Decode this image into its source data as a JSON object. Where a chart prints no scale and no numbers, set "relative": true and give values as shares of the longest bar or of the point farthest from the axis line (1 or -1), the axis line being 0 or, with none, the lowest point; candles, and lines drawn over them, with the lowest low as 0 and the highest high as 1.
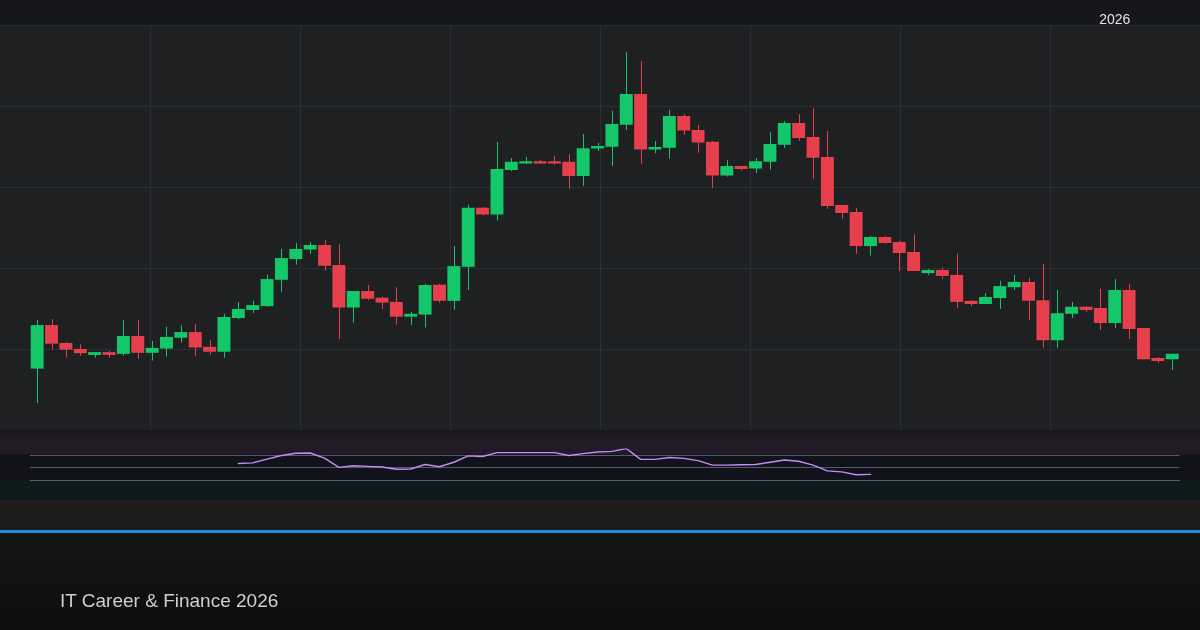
{
  "chart_data": [
    {
      "type": "candlestick",
      "relative": true,
      "grid": true,
      "categories": [
        null,
        null,
        null,
        null,
        null,
        null,
        null,
        null,
        null,
        null,
        null,
        null,
        null,
        null,
        null,
        null,
        null,
        null,
        null,
        null,
        null,
        null,
        null,
        null,
        null,
        null,
        null,
        null,
        null,
        null,
        null,
        null,
        null,
        null,
        null,
        null,
        null,
        null,
        null,
        null,
        null,
        null,
        null,
        null,
        null,
        null,
        null,
        null,
        null,
        null,
        null,
        null,
        null,
        null,
        null,
        null,
        null,
        null,
        null,
        null,
        null,
        null,
        null,
        null,
        null,
        null,
        null,
        null,
        null,
        null,
        null,
        null,
        null,
        null,
        null,
        "2026",
        null,
        null,
        null,
        null
      ],
      "ohlc": [
        [
          0.098,
          0.236,
          0,
          0.222
        ],
        [
          0.222,
          0.239,
          0.152,
          0.169
        ],
        [
          0.171,
          0.174,
          0.129,
          0.152
        ],
        [
          0.154,
          0.167,
          0.135,
          0.142
        ],
        [
          0.137,
          0.145,
          0.129,
          0.145
        ],
        [
          0.145,
          0.149,
          0.129,
          0.137
        ],
        [
          0.14,
          0.236,
          0.135,
          0.191
        ],
        [
          0.191,
          0.236,
          0.126,
          0.143
        ],
        [
          0.143,
          0.177,
          0.121,
          0.157
        ],
        [
          0.155,
          0.217,
          0.132,
          0.188
        ],
        [
          0.186,
          0.221,
          0.172,
          0.202
        ],
        [
          0.202,
          0.225,
          0.134,
          0.158
        ],
        [
          0.16,
          0.179,
          0.138,
          0.146
        ],
        [
          0.146,
          0.254,
          0.129,
          0.245
        ],
        [
          0.242,
          0.288,
          0.239,
          0.268
        ],
        [
          0.265,
          0.291,
          0.256,
          0.279
        ],
        [
          0.276,
          0.365,
          0.274,
          0.353
        ],
        [
          0.351,
          0.439,
          0.317,
          0.413
        ],
        [
          0.41,
          0.456,
          0.394,
          0.439
        ],
        [
          0.437,
          0.459,
          0.425,
          0.45
        ],
        [
          0.45,
          0.464,
          0.377,
          0.391
        ],
        [
          0.393,
          0.452,
          0.182,
          0.272
        ],
        [
          0.272,
          0.319,
          0.229,
          0.319
        ],
        [
          0.319,
          0.336,
          0.293,
          0.297
        ],
        [
          0.3,
          0.303,
          0.268,
          0.286
        ],
        [
          0.288,
          0.33,
          0.223,
          0.246
        ],
        [
          0.246,
          0.259,
          0.222,
          0.254
        ],
        [
          0.252,
          0.339,
          0.215,
          0.336
        ],
        [
          0.337,
          0.339,
          0.286,
          0.291
        ],
        [
          0.291,
          0.447,
          0.266,
          0.39
        ],
        [
          0.388,
          0.565,
          0.322,
          0.556
        ],
        [
          0.556,
          0.558,
          0.534,
          0.537
        ],
        [
          0.537,
          0.744,
          0.52,
          0.667
        ],
        [
          0.664,
          0.698,
          0.661,
          0.687
        ],
        [
          0.682,
          0.701,
          0.681,
          0.689
        ],
        [
          0.689,
          0.692,
          0.681,
          0.682
        ],
        [
          0.689,
          0.704,
          0.679,
          0.682
        ],
        [
          0.687,
          0.709,
          0.611,
          0.647
        ],
        [
          0.647,
          0.766,
          0.619,
          0.726
        ],
        [
          0.725,
          0.741,
          0.718,
          0.732
        ],
        [
          0.73,
          0.832,
          0.676,
          0.795
        ],
        [
          0.793,
          1,
          0.778,
          0.88
        ],
        [
          0.88,
          0.974,
          0.682,
          0.722
        ],
        [
          0.722,
          0.746,
          0.712,
          0.729
        ],
        [
          0.727,
          0.835,
          0.696,
          0.818
        ],
        [
          0.818,
          0.823,
          0.764,
          0.776
        ],
        [
          0.778,
          0.792,
          0.713,
          0.742
        ],
        [
          0.744,
          0.746,
          0.613,
          0.648
        ],
        [
          0.648,
          0.692,
          0.645,
          0.675
        ],
        [
          0.675,
          0.675,
          0.662,
          0.667
        ],
        [
          0.668,
          0.698,
          0.656,
          0.689
        ],
        [
          0.687,
          0.772,
          0.665,
          0.738
        ],
        [
          0.736,
          0.803,
          0.727,
          0.798
        ],
        [
          0.798,
          0.823,
          0.747,
          0.755
        ],
        [
          0.758,
          0.84,
          0.639,
          0.699
        ],
        [
          0.701,
          0.775,
          0.553,
          0.561
        ],
        [
          0.564,
          0.564,
          0.525,
          0.541
        ],
        [
          0.544,
          0.556,
          0.425,
          0.447
        ],
        [
          0.447,
          0.476,
          0.42,
          0.473
        ],
        [
          0.473,
          0.476,
          0.454,
          0.456
        ],
        [
          0.459,
          0.462,
          0.376,
          0.427
        ],
        [
          0.43,
          0.481,
          0.376,
          0.376
        ],
        [
          0.37,
          0.382,
          0.365,
          0.379
        ],
        [
          0.379,
          0.385,
          0.353,
          0.362
        ],
        [
          0.365,
          0.425,
          0.271,
          0.288
        ],
        [
          0.291,
          0.293,
          0.276,
          0.282
        ],
        [
          0.282,
          0.313,
          0.282,
          0.302
        ],
        [
          0.299,
          0.348,
          0.268,
          0.333
        ],
        [
          0.33,
          0.365,
          0.322,
          0.345
        ],
        [
          0.345,
          0.356,
          0.236,
          0.291
        ],
        [
          0.293,
          0.396,
          0.157,
          0.179
        ],
        [
          0.179,
          0.322,
          0.157,
          0.256
        ],
        [
          0.254,
          0.288,
          0.242,
          0.274
        ],
        [
          0.274,
          0.276,
          0.259,
          0.265
        ],
        [
          0.271,
          0.325,
          0.208,
          0.228
        ],
        [
          0.228,
          0.353,
          0.214,
          0.322
        ],
        [
          0.322,
          0.339,
          0.182,
          0.211
        ],
        [
          0.214,
          0.214,
          0.125,
          0.125
        ],
        [
          0.128,
          0.131,
          0.114,
          0.12
        ],
        [
          0.125,
          0.14,
          0.094,
          0.14
        ]
      ],
      "colors": [
        "#14c86a",
        "#e5404b",
        "#e5404b",
        "#e5404b",
        "#14c86a",
        "#e5404b",
        "#14c86a",
        "#e5404b",
        "#14c86a",
        "#14c86a",
        "#14c86a",
        "#e5404b",
        "#e5404b",
        "#14c86a",
        "#14c86a",
        "#14c86a",
        "#14c86a",
        "#14c86a",
        "#14c86a",
        "#14c86a",
        "#e5404b",
        "#e5404b",
        "#14c86a",
        "#e5404b",
        "#e5404b",
        "#e5404b",
        "#14c86a",
        "#14c86a",
        "#e5404b",
        "#14c86a",
        "#14c86a",
        "#e5404b",
        "#14c86a",
        "#14c86a",
        "#14c86a",
        "#e5404b",
        "#e5404b",
        "#e5404b",
        "#14c86a",
        "#14c86a",
        "#14c86a",
        "#14c86a",
        "#e5404b",
        "#14c86a",
        "#14c86a",
        "#e5404b",
        "#e5404b",
        "#e5404b",
        "#14c86a",
        "#e5404b",
        "#14c86a",
        "#14c86a",
        "#14c86a",
        "#e5404b",
        "#e5404b",
        "#e5404b",
        "#e5404b",
        "#e5404b",
        "#14c86a",
        "#e5404b",
        "#e5404b",
        "#e5404b",
        "#14c86a",
        "#e5404b",
        "#e5404b",
        "#e5404b",
        "#14c86a",
        "#14c86a",
        "#14c86a",
        "#e5404b",
        "#e5404b",
        "#14c86a",
        "#14c86a",
        "#e5404b",
        "#e5404b",
        "#14c86a",
        "#e5404b",
        "#e5404b",
        "#e5404b",
        "#14c86a"
      ],
      "annotations": [
        "IT Career & Finance 2026"
      ]
    },
    {
      "type": "line",
      "relative": true,
      "color": "#c58cf2",
      "categories": [
        null,
        null,
        null,
        null,
        null,
        null,
        null,
        null,
        null,
        null,
        null,
        null,
        null,
        null,
        null,
        null,
        null,
        null,
        null,
        null,
        null,
        null,
        null,
        null,
        null,
        null,
        null,
        null,
        null,
        null,
        null,
        null,
        null,
        null,
        null,
        null,
        null,
        null,
        null,
        null,
        null,
        null,
        null,
        null,
        null,
        null,
        null,
        null,
        null,
        null,
        null,
        null,
        null,
        null,
        null,
        null,
        null,
        null,
        null,
        null,
        null,
        null,
        null,
        null,
        null,
        null,
        null,
        null,
        null,
        null,
        null,
        null,
        null,
        null,
        null,
        null,
        null,
        null,
        null,
        null
      ],
      "values": [
        null,
        null,
        null,
        null,
        null,
        null,
        null,
        null,
        null,
        null,
        null,
        null,
        null,
        null,
        0.53,
        0.55,
        0.67,
        0.78,
        0.85,
        0.86,
        0.7,
        0.41,
        0.46,
        0.44,
        0.42,
        0.35,
        0.36,
        0.5,
        0.43,
        0.57,
        0.77,
        0.75,
        0.87,
        0.87,
        0.87,
        0.87,
        0.87,
        0.78,
        0.84,
        0.89,
        0.91,
        1,
        0.66,
        0.66,
        0.72,
        0.69,
        0.62,
        0.48,
        0.48,
        0.49,
        0.5,
        0.57,
        0.64,
        0.6,
        0.48,
        0.3,
        0.27,
        0.18,
        0.19,
        null,
        null,
        null,
        null,
        null,
        null,
        null,
        null,
        null,
        null,
        null,
        null,
        null,
        null,
        null,
        null,
        null,
        null,
        null,
        null,
        null
      ],
      "ref_lines": [
        {
          "axis": "y",
          "value": 0.81,
          "color": "#555a6e"
        },
        {
          "axis": "y",
          "value": 0.41,
          "color": "#555a6e"
        }
      ]
    }
  ]
}
